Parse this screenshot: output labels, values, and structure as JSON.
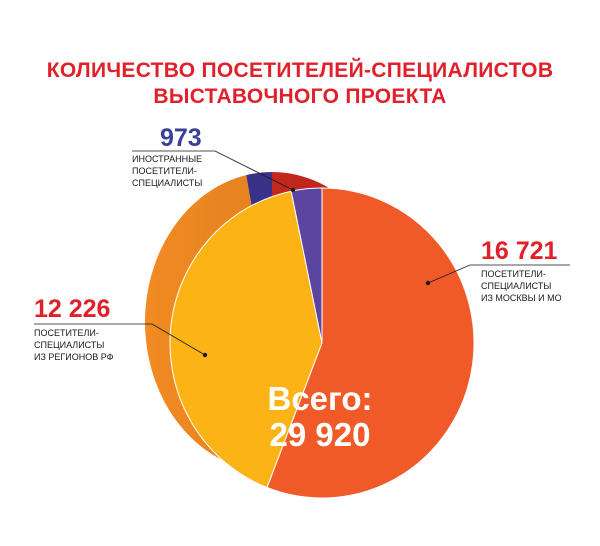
{
  "title": {
    "line1": "КОЛИЧЕСТВО ПОСЕТИТЕЛЕЙ-СПЕЦИАЛИСТОВ",
    "line2": "ВЫСТАВОЧНОГО ПРОЕКТА"
  },
  "total": {
    "label": "Всего:",
    "value": "29 920"
  },
  "colors": {
    "title": "#e0202a",
    "label_red": "#e0202a",
    "label_blue": "#3a3f9a",
    "moscow": "#f05a28",
    "moscow_side": "#cf2a1e",
    "regions": "#fcb316",
    "regions_side": "#f18a22",
    "foreign": "#5b45a0",
    "foreign_side": "#3d3590",
    "leader": "#1a1a1a"
  },
  "chart_data": {
    "type": "pie",
    "title": "КОЛИЧЕСТВО ПОСЕТИТЕЛЕЙ-СПЕЦИАЛИСТОВ ВЫСТАВОЧНОГО ПРОЕКТА",
    "total": 29920,
    "slices": [
      {
        "key": "moscow",
        "value": 16721,
        "value_label": "16 721",
        "label_lines": [
          "ПОСЕТИТЕЛИ-",
          "СПЕЦИАЛИСТЫ",
          "ИЗ МОСКВЫ И МО"
        ],
        "color": "#f05a28"
      },
      {
        "key": "regions",
        "value": 12226,
        "value_label": "12 226",
        "label_lines": [
          "ПОСЕТИТЕЛИ-",
          "СПЕЦИАЛИСТЫ",
          "ИЗ РЕГИОНОВ РФ"
        ],
        "color": "#fcb316"
      },
      {
        "key": "foreign",
        "value": 973,
        "value_label": "973",
        "label_lines": [
          "ИНОСТРАННЫЕ",
          "ПОСЕТИТЕЛИ-",
          "СПЕЦИАЛИСТЫ"
        ],
        "color": "#5b45a0"
      }
    ]
  }
}
